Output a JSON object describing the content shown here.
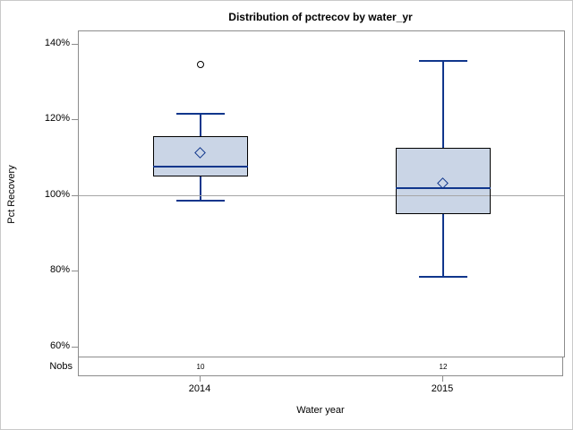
{
  "title": "Distribution of pctrecov by water_yr",
  "y_axis": {
    "label": "Pct Recovery",
    "ticks": [
      {
        "value": 140,
        "label": "140%"
      },
      {
        "value": 120,
        "label": "120%"
      },
      {
        "value": 100,
        "label": "100%"
      },
      {
        "value": 80,
        "label": "80%"
      },
      {
        "value": 60,
        "label": "60%"
      }
    ]
  },
  "x_axis": {
    "label": "Water year",
    "categories": [
      "2014",
      "2015"
    ]
  },
  "nobs": {
    "label": "Nobs",
    "values": [
      "10",
      "12"
    ]
  },
  "colors": {
    "box_fill": "#cad5e6",
    "box_border": "#000000",
    "line_blue": "#10368c",
    "frame_gray": "#8c8c8c",
    "refline_gray": "#a6a6a6",
    "outer_border": "#c9c9c9",
    "text": "#000000"
  },
  "chart_data": {
    "type": "boxplot",
    "title": "Distribution of pctrecov by water_yr",
    "xlabel": "Water year",
    "ylabel": "Pct Recovery",
    "categories": [
      "2014",
      "2015"
    ],
    "ylim": [
      57.4,
      143.3
    ],
    "yticks": [
      140,
      120,
      100,
      80,
      60
    ],
    "ytick_format": "percent",
    "reference_line": 100,
    "grid": false,
    "legend": "none",
    "series": [
      {
        "category": "2014",
        "nobs": 10,
        "whisker_low": 98.5,
        "q1": 105,
        "median": 107.5,
        "q3": 115.5,
        "whisker_high": 121.5,
        "mean": 111,
        "outliers": [
          134.5
        ]
      },
      {
        "category": "2015",
        "nobs": 12,
        "whisker_low": 78.5,
        "q1": 95,
        "median": 102,
        "q3": 112.5,
        "whisker_high": 135.5,
        "mean": 103,
        "outliers": []
      }
    ]
  }
}
